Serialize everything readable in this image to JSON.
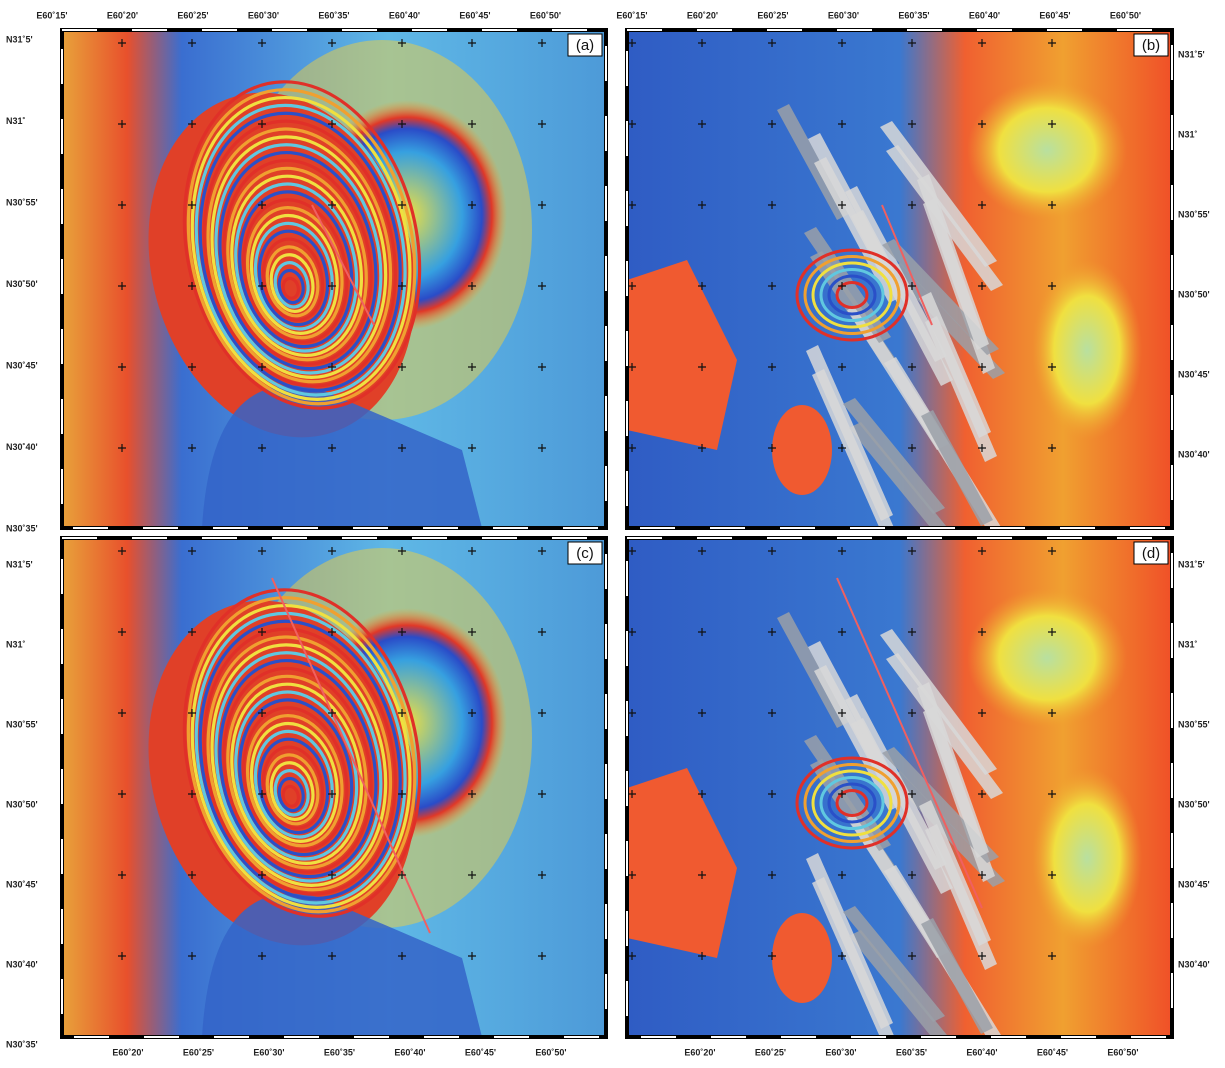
{
  "panels": [
    {
      "label": "(a)",
      "x_labels": [
        "E60˚15'",
        "E60˚20'",
        "E60˚25'",
        "E60˚30'",
        "E60˚35'",
        "E60˚40'",
        "E60˚45'",
        "E60˚50'"
      ],
      "y_labels": [
        "N31˚5'",
        "N31˚",
        "N30˚55'",
        "N30˚50'",
        "N30˚45'",
        "N30˚40'",
        "N30˚35'"
      ]
    },
    {
      "label": "(b)",
      "x_labels": [
        "E60˚15'",
        "E60˚20'",
        "E60˚25'",
        "E60˚30'",
        "E60˚35'",
        "E60˚40'",
        "E60˚45'",
        "E60˚50'"
      ],
      "y_labels": [
        "N31˚5'",
        "N31˚",
        "N30˚55'",
        "N30˚50'",
        "N30˚45'",
        "N30˚40'"
      ]
    },
    {
      "label": "(c)",
      "x_labels": [
        "E60˚20'",
        "E60˚25'",
        "E60˚30'",
        "E60˚35'",
        "E60˚40'",
        "E60˚45'",
        "E60˚50'"
      ],
      "y_labels": [
        "N31˚5'",
        "N31˚",
        "N30˚55'",
        "N30˚50'",
        "N30˚45'",
        "N30˚40'",
        "N30˚35'"
      ]
    },
    {
      "label": "(d)",
      "x_labels": [
        "E60˚20'",
        "E60˚25'",
        "E60˚30'",
        "E60˚35'",
        "E60˚40'",
        "E60˚45'",
        "E60˚50'"
      ],
      "y_labels": [
        "N31˚5'",
        "N31˚",
        "N30˚55'",
        "N30˚50'",
        "N30˚45'",
        "N30˚40'"
      ]
    }
  ]
}
